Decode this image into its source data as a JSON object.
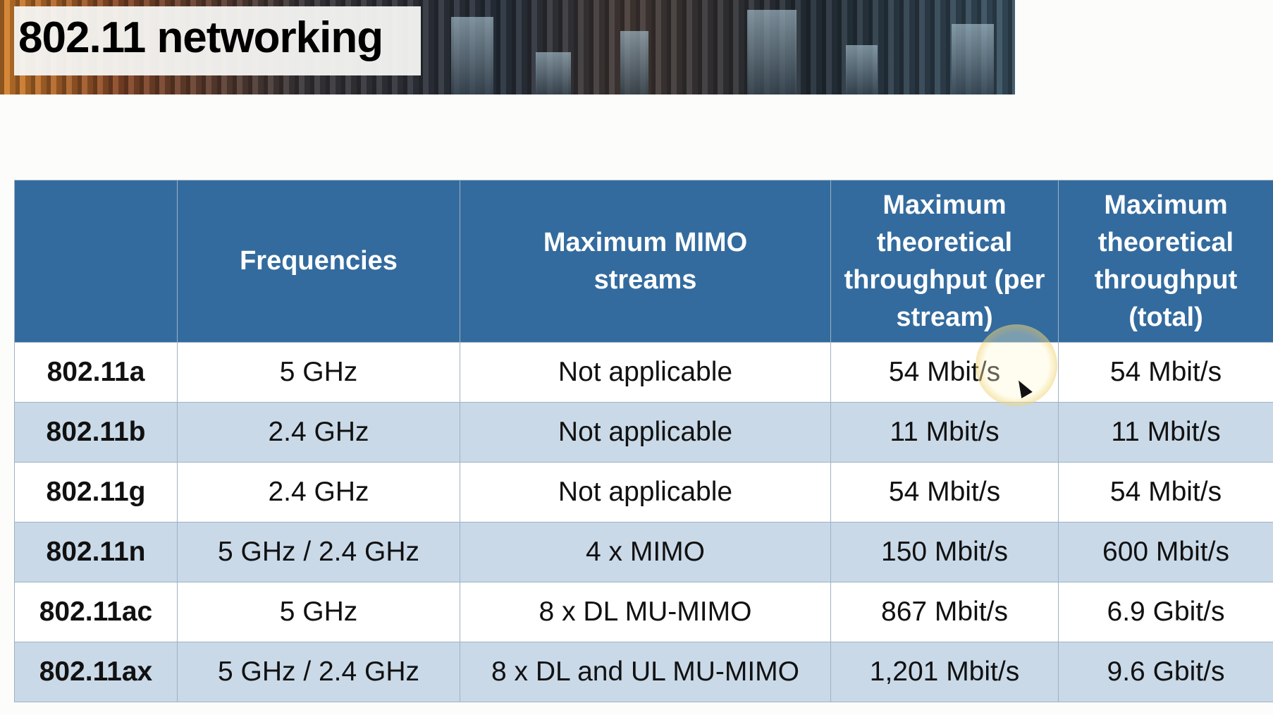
{
  "slide": {
    "title": "802.11 networking"
  },
  "table": {
    "headers": [
      "",
      "Frequencies",
      "Maximum MIMO streams",
      "Maximum theoretical throughput (per stream)",
      "Maximum theoretical throughput (total)"
    ],
    "rows": [
      [
        "802.11a",
        "5 GHz",
        "Not applicable",
        "54 Mbit/s",
        "54 Mbit/s"
      ],
      [
        "802.11b",
        "2.4 GHz",
        "Not applicable",
        "11 Mbit/s",
        "11 Mbit/s"
      ],
      [
        "802.11g",
        "2.4 GHz",
        "Not applicable",
        "54 Mbit/s",
        "54 Mbit/s"
      ],
      [
        "802.11n",
        "5 GHz / 2.4 GHz",
        "4 x MIMO",
        "150 Mbit/s",
        "600 Mbit/s"
      ],
      [
        "802.11ac",
        "5 GHz",
        "8 x DL MU-MIMO",
        "867 Mbit/s",
        "6.9 Gbit/s"
      ],
      [
        "802.11ax",
        "5 GHz / 2.4 GHz",
        "8 x DL and UL MU-MIMO",
        "1,201 Mbit/s",
        "9.6 Gbit/s"
      ]
    ]
  },
  "colors": {
    "header_bg": "#336b9e",
    "alt_row_bg": "#c9d9e8",
    "cursor_highlight": "#ebc85a"
  }
}
